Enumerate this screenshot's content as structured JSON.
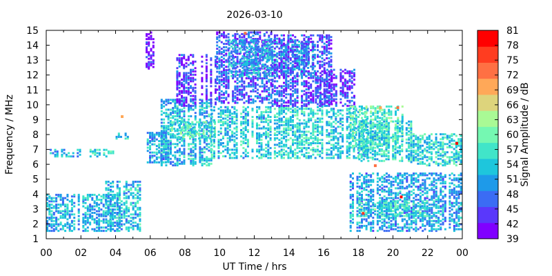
{
  "chart_data": {
    "type": "heatmap",
    "title": "2026-03-10",
    "xlabel": "UT Time / hrs",
    "ylabel": "Frequency / MHz",
    "colorbar_label": "Signal Amplitude / dB",
    "xlim": [
      0,
      24
    ],
    "ylim": [
      1,
      15
    ],
    "x_ticks": [
      "00",
      "02",
      "04",
      "06",
      "08",
      "10",
      "12",
      "14",
      "16",
      "18",
      "20",
      "22",
      "00"
    ],
    "y_ticks": [
      "1",
      "2",
      "3",
      "4",
      "5",
      "6",
      "7",
      "8",
      "9",
      "10",
      "11",
      "12",
      "13",
      "14",
      "15"
    ],
    "colorbar_ticks": [
      "39",
      "42",
      "45",
      "48",
      "51",
      "54",
      "57",
      "60",
      "63",
      "66",
      "69",
      "72",
      "75",
      "78",
      "81"
    ],
    "colorbar_range": [
      39,
      81
    ],
    "colorbar_colors": [
      "#8000ff",
      "#5a38fb",
      "#3b6cf4",
      "#1e9ae9",
      "#1ec6dc",
      "#41e5c9",
      "#75f8b2",
      "#a9fa95",
      "#ddd47c",
      "#ffa858",
      "#ff7043",
      "#ff3d20",
      "#ff0000"
    ],
    "grid": false,
    "regions": [
      {
        "t": [
          0.0,
          4.3
        ],
        "f": [
          1.6,
          4.1
        ],
        "amp": 52
      },
      {
        "t": [
          0.2,
          2.0
        ],
        "f": [
          6.6,
          7.1
        ],
        "amp": 52
      },
      {
        "t": [
          2.5,
          3.8
        ],
        "f": [
          6.6,
          7.1
        ],
        "amp": 54
      },
      {
        "t": [
          3.4,
          5.5
        ],
        "f": [
          1.6,
          5.0
        ],
        "amp": 53
      },
      {
        "t": [
          4.0,
          4.7
        ],
        "f": [
          7.8,
          8.2
        ],
        "amp": 54
      },
      {
        "t": [
          5.6,
          6.2
        ],
        "f": [
          12.5,
          15.0
        ],
        "amp": 42
      },
      {
        "t": [
          5.8,
          7.0
        ],
        "f": [
          6.2,
          8.2
        ],
        "amp": 51
      },
      {
        "t": [
          6.6,
          9.5
        ],
        "f": [
          6.0,
          10.5
        ],
        "amp": 53
      },
      {
        "t": [
          7.2,
          9.8
        ],
        "f": [
          7.8,
          9.0
        ],
        "amp": 58
      },
      {
        "t": [
          7.5,
          9.8
        ],
        "f": [
          10.0,
          13.5
        ],
        "amp": 44
      },
      {
        "t": [
          9.5,
          13.0
        ],
        "f": [
          6.5,
          10.0
        ],
        "amp": 54
      },
      {
        "t": [
          9.8,
          13.0
        ],
        "f": [
          10.2,
          15.0
        ],
        "amp": 46
      },
      {
        "t": [
          10.5,
          15.5
        ],
        "f": [
          12.0,
          14.5
        ],
        "amp": 52
      },
      {
        "t": [
          13.0,
          16.0
        ],
        "f": [
          6.5,
          10.0
        ],
        "amp": 55
      },
      {
        "t": [
          13.0,
          16.5
        ],
        "f": [
          10.0,
          14.8
        ],
        "amp": 46
      },
      {
        "t": [
          15.5,
          17.8
        ],
        "f": [
          10.0,
          12.5
        ],
        "amp": 44
      },
      {
        "t": [
          16.0,
          18.5
        ],
        "f": [
          6.5,
          9.8
        ],
        "amp": 54
      },
      {
        "t": [
          17.5,
          20.5
        ],
        "f": [
          7.2,
          10.0
        ],
        "amp": 58
      },
      {
        "t": [
          18.0,
          21.0
        ],
        "f": [
          6.3,
          9.0
        ],
        "amp": 55
      },
      {
        "t": [
          21.0,
          24.0
        ],
        "f": [
          6.0,
          8.2
        ],
        "amp": 55
      },
      {
        "t": [
          17.5,
          24.0
        ],
        "f": [
          1.6,
          5.5
        ],
        "amp": 51
      },
      {
        "t": [
          18.0,
          22.0
        ],
        "f": [
          2.6,
          3.6
        ],
        "amp": 56
      }
    ],
    "highlights": [
      {
        "t": 20.4,
        "f": 3.9,
        "amp": 81
      },
      {
        "t": 23.6,
        "f": 7.5,
        "amp": 78
      },
      {
        "t": 19.2,
        "f": 9.9,
        "amp": 69
      },
      {
        "t": 20.2,
        "f": 9.9,
        "amp": 72
      },
      {
        "t": 4.3,
        "f": 9.3,
        "amp": 69
      },
      {
        "t": 11.4,
        "f": 14.9,
        "amp": 72
      },
      {
        "t": 18.2,
        "f": 2.8,
        "amp": 75
      },
      {
        "t": 18.9,
        "f": 6.0,
        "amp": 72
      }
    ]
  }
}
